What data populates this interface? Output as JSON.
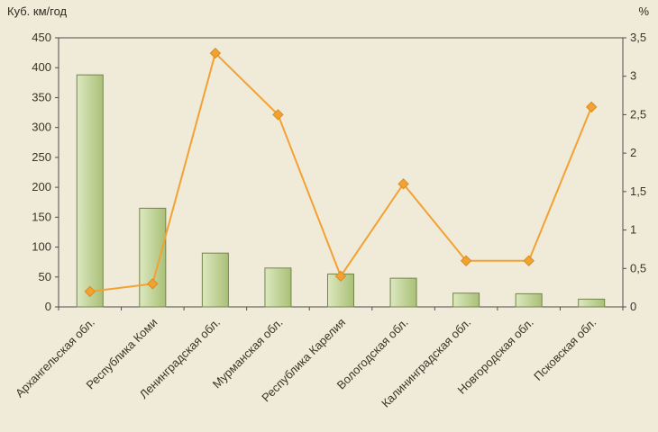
{
  "chart_data": {
    "type": "bar+line",
    "title": "",
    "ylabel_left": "Куб. км/год",
    "ylabel_right": "%",
    "categories": [
      "Архангельская обл.",
      "Республика Коми",
      "Ленинградская обл.",
      "Мурманская обл.",
      "Республика Карелия",
      "Вологодская обл.",
      "Калининградская обл.",
      "Новгородская обл.",
      "Псковская обл."
    ],
    "bar_values": [
      388,
      165,
      90,
      65,
      55,
      48,
      23,
      22,
      13
    ],
    "line_values": [
      0.2,
      0.3,
      3.3,
      2.5,
      0.4,
      1.6,
      0.6,
      0.6,
      2.6
    ],
    "left_axis": {
      "min": 0,
      "max": 450,
      "step": 50,
      "labels": [
        "0",
        "50",
        "100",
        "150",
        "200",
        "250",
        "300",
        "350",
        "400",
        "450"
      ]
    },
    "right_axis": {
      "min": 0,
      "max": 3.5,
      "step": 0.5,
      "labels": [
        "0",
        "0,5",
        "1",
        "1,5",
        "2",
        "2,5",
        "3",
        "3,5"
      ]
    },
    "legend": "off",
    "grid": "off",
    "colors": {
      "background": "#f0ead8",
      "bar_fill_light": "#dce8c0",
      "bar_fill_dark": "#a9c077",
      "bar_border": "#74854a",
      "line": "#f2a233",
      "marker_fill": "#f2a233",
      "marker_border": "#d88d1f",
      "axis": "#4d4d4d",
      "text": "#3a342a"
    }
  }
}
